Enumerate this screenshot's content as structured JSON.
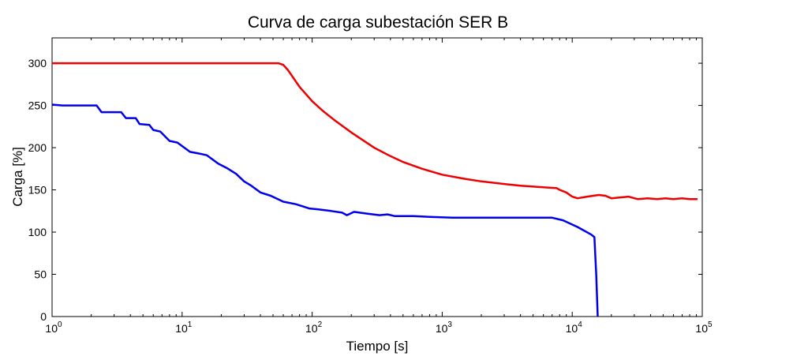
{
  "chart_data": {
    "type": "line",
    "title": "Curva de carga subestación SER B",
    "xlabel": "Tiempo [s]",
    "ylabel": "Carga [%]",
    "xscale": "log",
    "xlim": [
      1,
      100000
    ],
    "ylim": [
      0,
      330
    ],
    "yticks": [
      0,
      50,
      100,
      150,
      200,
      250,
      300
    ],
    "xticks": [
      {
        "base": "10",
        "exp": "0"
      },
      {
        "base": "10",
        "exp": "1"
      },
      {
        "base": "10",
        "exp": "2"
      },
      {
        "base": "10",
        "exp": "3"
      },
      {
        "base": "10",
        "exp": "4"
      },
      {
        "base": "10",
        "exp": "5"
      }
    ],
    "grid": false,
    "series": [
      {
        "name": "red",
        "color": "#ee0000",
        "points": [
          [
            1,
            300
          ],
          [
            20,
            300
          ],
          [
            55,
            300
          ],
          [
            60,
            298
          ],
          [
            65,
            292
          ],
          [
            80,
            272
          ],
          [
            100,
            255
          ],
          [
            120,
            244
          ],
          [
            150,
            232
          ],
          [
            200,
            218
          ],
          [
            300,
            200
          ],
          [
            400,
            190
          ],
          [
            500,
            183
          ],
          [
            700,
            175
          ],
          [
            1000,
            168
          ],
          [
            1500,
            163
          ],
          [
            2000,
            160
          ],
          [
            3000,
            157
          ],
          [
            4000,
            155
          ],
          [
            6000,
            153
          ],
          [
            7600,
            152
          ],
          [
            8000,
            150
          ],
          [
            9000,
            147
          ],
          [
            10000,
            142
          ],
          [
            11000,
            140
          ],
          [
            13000,
            142
          ],
          [
            16000,
            144
          ],
          [
            18000,
            143
          ],
          [
            20000,
            140
          ],
          [
            23000,
            141
          ],
          [
            27000,
            142
          ],
          [
            32000,
            139
          ],
          [
            38000,
            140
          ],
          [
            45000,
            139
          ],
          [
            52000,
            140
          ],
          [
            60000,
            139
          ],
          [
            70000,
            140
          ],
          [
            80000,
            139
          ],
          [
            92000,
            139
          ]
        ]
      },
      {
        "name": "blue",
        "color": "#0000ee",
        "points": [
          [
            1,
            251
          ],
          [
            1.2,
            250
          ],
          [
            2.2,
            250
          ],
          [
            2.4,
            242
          ],
          [
            3.4,
            242
          ],
          [
            3.7,
            235
          ],
          [
            4.4,
            235
          ],
          [
            4.7,
            228
          ],
          [
            5.6,
            227
          ],
          [
            6.0,
            221
          ],
          [
            6.8,
            219
          ],
          [
            8.0,
            208
          ],
          [
            9.2,
            206
          ],
          [
            11.5,
            195
          ],
          [
            13.5,
            193
          ],
          [
            15.5,
            191
          ],
          [
            19,
            181
          ],
          [
            22,
            176
          ],
          [
            26,
            169
          ],
          [
            30,
            160
          ],
          [
            34,
            155
          ],
          [
            40,
            147
          ],
          [
            48,
            143
          ],
          [
            60,
            136
          ],
          [
            75,
            133
          ],
          [
            95,
            128
          ],
          [
            110,
            127
          ],
          [
            140,
            125
          ],
          [
            170,
            123
          ],
          [
            185,
            120
          ],
          [
            210,
            124
          ],
          [
            260,
            122
          ],
          [
            330,
            120
          ],
          [
            380,
            121
          ],
          [
            430,
            119
          ],
          [
            600,
            119
          ],
          [
            800,
            118
          ],
          [
            1200,
            117
          ],
          [
            2000,
            117
          ],
          [
            4000,
            117
          ],
          [
            7000,
            117
          ],
          [
            8500,
            114
          ],
          [
            11000,
            106
          ],
          [
            14000,
            97
          ],
          [
            14800,
            94
          ],
          [
            15300,
            50
          ],
          [
            15700,
            0
          ]
        ]
      }
    ]
  }
}
